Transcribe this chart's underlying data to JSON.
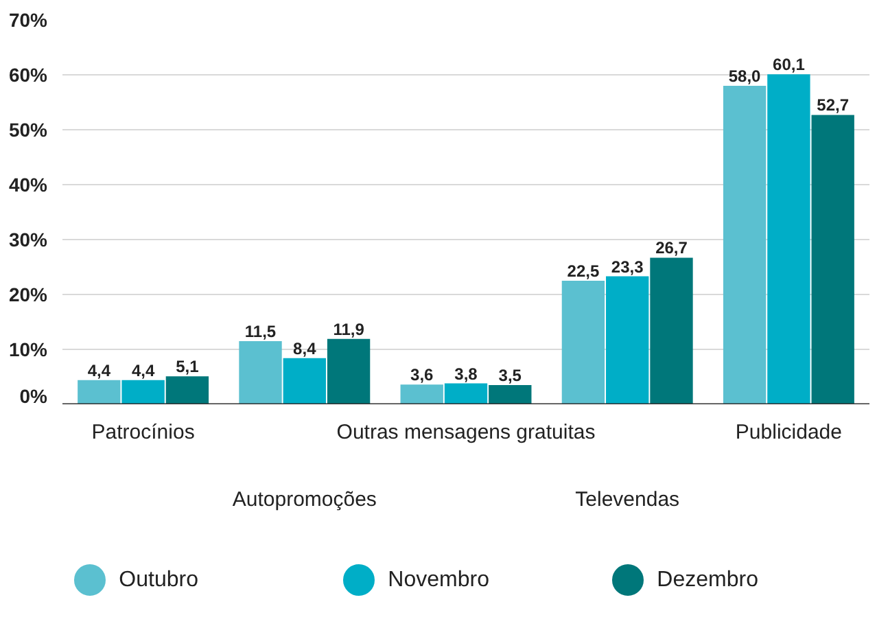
{
  "chart_data": {
    "type": "bar",
    "categories": [
      "Patrocínios",
      "Autopromoções",
      "Outras mensagens gratuitas",
      "Televendas",
      "Publicidade"
    ],
    "series": [
      {
        "name": "Outubro",
        "color": "#5bc0d0",
        "values": [
          4.4,
          11.5,
          3.6,
          22.5,
          58.0
        ],
        "value_labels": [
          "4,4",
          "11,5",
          "3,6",
          "22,5",
          "58,0"
        ]
      },
      {
        "name": "Novembro",
        "color": "#00aec7",
        "values": [
          4.4,
          8.4,
          3.8,
          23.3,
          60.1
        ],
        "value_labels": [
          "4,4",
          "8,4",
          "3,8",
          "23,3",
          "60,1"
        ]
      },
      {
        "name": "Dezembro",
        "color": "#00777a",
        "values": [
          5.1,
          11.9,
          3.5,
          26.7,
          52.7
        ],
        "value_labels": [
          "5,1",
          "11,9",
          "3,5",
          "26,7",
          "52,7"
        ]
      }
    ],
    "ylim": [
      0,
      70
    ],
    "yticks": [
      {
        "value": 0,
        "label": "0%"
      },
      {
        "value": 10,
        "label": "10%"
      },
      {
        "value": 20,
        "label": "20%"
      },
      {
        "value": 30,
        "label": "30%"
      },
      {
        "value": 40,
        "label": "40%"
      },
      {
        "value": 50,
        "label": "50%"
      },
      {
        "value": 60,
        "label": "60%"
      },
      {
        "value": 70,
        "label": "70%"
      }
    ],
    "grid": "y",
    "legend": "bottom"
  }
}
